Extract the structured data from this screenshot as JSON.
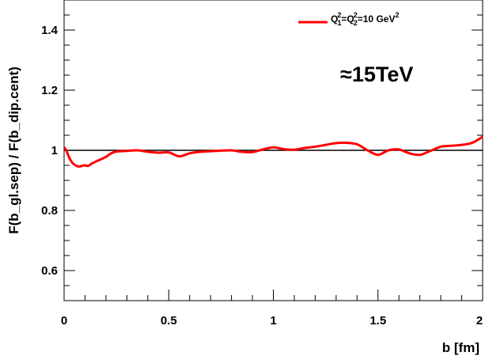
{
  "chart_data": {
    "type": "line",
    "title": "",
    "xlabel": "b [fm]",
    "ylabel": "F(b_gl.sep) / F(b_dip.cent)",
    "xlim": [
      0,
      2
    ],
    "ylim": [
      0.5,
      1.5
    ],
    "x_ticks": [
      0,
      0.5,
      1,
      1.5,
      2
    ],
    "x_tick_labels": [
      "0",
      "0.5",
      "1",
      "1.5",
      "2"
    ],
    "y_ticks": [
      0.6,
      0.8,
      1,
      1.2,
      1.4
    ],
    "y_tick_labels": [
      "0.6",
      "0.8",
      "1",
      "1.2",
      "1.4"
    ],
    "grid": false,
    "legend_position": "top-right",
    "annotation": "≈15TeV",
    "reference_line": {
      "y": 1,
      "color": "#000000"
    },
    "series": [
      {
        "name": "Q₁²=Q₂²=10 GeV²",
        "legend": {
          "base": "Q",
          "sub1": "1",
          "sup1": "2",
          "eq1": "=Q",
          "sub2": "2",
          "sup2": "2",
          "tail": "=10  GeV",
          "sup3": "2"
        },
        "color": "#ff0000",
        "points": [
          [
            0.0,
            1.01
          ],
          [
            0.01,
            1.0
          ],
          [
            0.025,
            0.975
          ],
          [
            0.04,
            0.958
          ],
          [
            0.055,
            0.95
          ],
          [
            0.07,
            0.946
          ],
          [
            0.085,
            0.948
          ],
          [
            0.1,
            0.95
          ],
          [
            0.115,
            0.948
          ],
          [
            0.13,
            0.955
          ],
          [
            0.15,
            0.962
          ],
          [
            0.175,
            0.97
          ],
          [
            0.2,
            0.978
          ],
          [
            0.225,
            0.99
          ],
          [
            0.25,
            0.996
          ],
          [
            0.3,
            0.998
          ],
          [
            0.35,
            1.0
          ],
          [
            0.4,
            0.995
          ],
          [
            0.45,
            0.992
          ],
          [
            0.5,
            0.993
          ],
          [
            0.55,
            0.98
          ],
          [
            0.6,
            0.99
          ],
          [
            0.65,
            0.995
          ],
          [
            0.7,
            0.997
          ],
          [
            0.75,
            0.999
          ],
          [
            0.8,
            1.0
          ],
          [
            0.85,
            0.995
          ],
          [
            0.9,
            0.994
          ],
          [
            0.95,
            1.003
          ],
          [
            1.0,
            1.01
          ],
          [
            1.05,
            1.004
          ],
          [
            1.1,
            1.002
          ],
          [
            1.15,
            1.008
          ],
          [
            1.2,
            1.012
          ],
          [
            1.25,
            1.018
          ],
          [
            1.3,
            1.024
          ],
          [
            1.35,
            1.025
          ],
          [
            1.4,
            1.02
          ],
          [
            1.45,
            1.0
          ],
          [
            1.5,
            0.985
          ],
          [
            1.55,
            1.0
          ],
          [
            1.6,
            1.003
          ],
          [
            1.65,
            0.99
          ],
          [
            1.7,
            0.985
          ],
          [
            1.75,
            0.998
          ],
          [
            1.8,
            1.012
          ],
          [
            1.85,
            1.015
          ],
          [
            1.9,
            1.018
          ],
          [
            1.95,
            1.025
          ],
          [
            2.0,
            1.045
          ]
        ]
      }
    ]
  }
}
